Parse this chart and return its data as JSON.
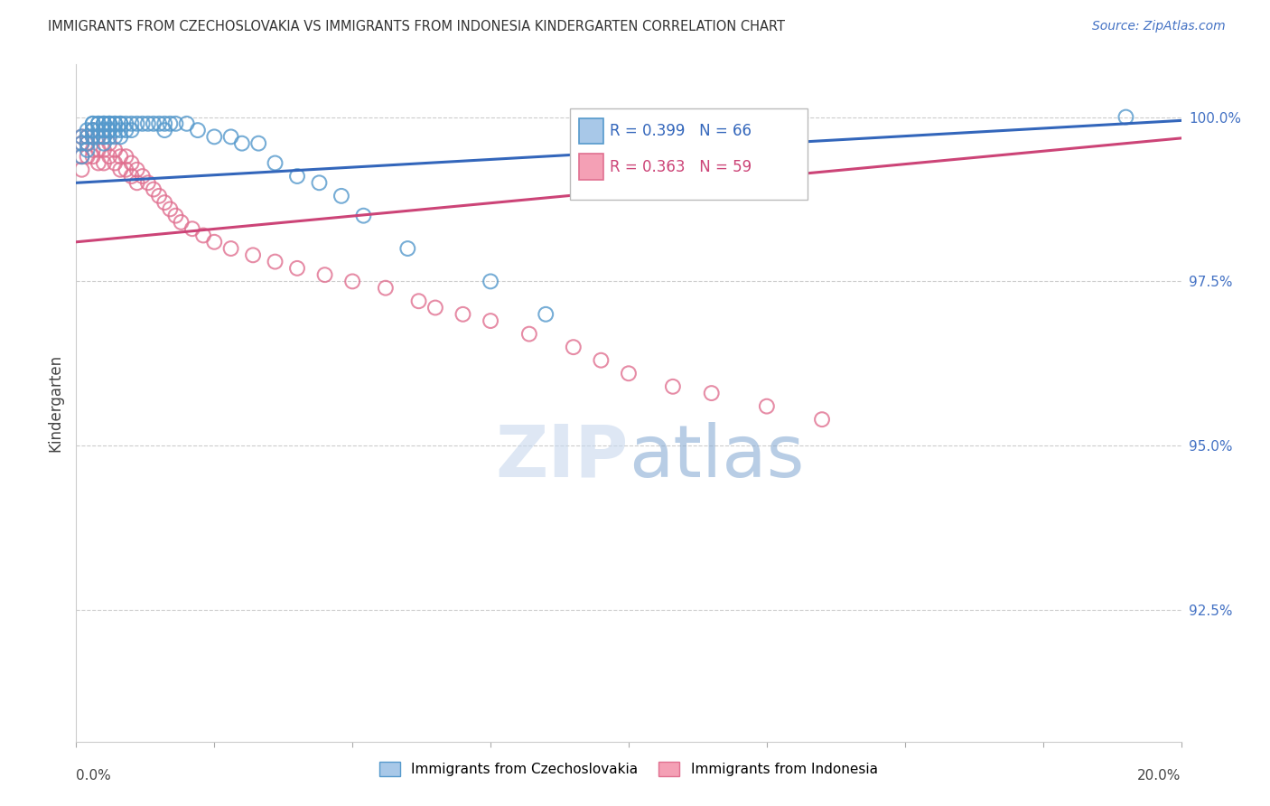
{
  "title": "IMMIGRANTS FROM CZECHOSLOVAKIA VS IMMIGRANTS FROM INDONESIA KINDERGARTEN CORRELATION CHART",
  "source": "Source: ZipAtlas.com",
  "ylabel": "Kindergarten",
  "ytick_labels": [
    "100.0%",
    "97.5%",
    "95.0%",
    "92.5%"
  ],
  "ytick_values": [
    1.0,
    0.975,
    0.95,
    0.925
  ],
  "xmin": 0.0,
  "xmax": 0.2,
  "ymin": 0.905,
  "ymax": 1.008,
  "legend1_label": "Immigrants from Czechoslovakia",
  "legend2_label": "Immigrants from Indonesia",
  "R_blue": 0.399,
  "N_blue": 66,
  "R_pink": 0.363,
  "N_pink": 59,
  "blue_color": "#a8c8e8",
  "pink_color": "#f4a0b5",
  "blue_edge_color": "#5599cc",
  "pink_edge_color": "#e07090",
  "blue_line_color": "#3366bb",
  "pink_line_color": "#cc4477",
  "watermark_zip": "ZIP",
  "watermark_atlas": "atlas",
  "blue_scatter_x": [
    0.001,
    0.001,
    0.001,
    0.002,
    0.002,
    0.002,
    0.002,
    0.003,
    0.003,
    0.003,
    0.003,
    0.003,
    0.004,
    0.004,
    0.004,
    0.004,
    0.005,
    0.005,
    0.005,
    0.005,
    0.005,
    0.005,
    0.005,
    0.005,
    0.006,
    0.006,
    0.006,
    0.006,
    0.006,
    0.006,
    0.007,
    0.007,
    0.007,
    0.007,
    0.008,
    0.008,
    0.008,
    0.008,
    0.009,
    0.009,
    0.01,
    0.01,
    0.011,
    0.012,
    0.013,
    0.014,
    0.015,
    0.016,
    0.016,
    0.017,
    0.018,
    0.02,
    0.022,
    0.025,
    0.028,
    0.03,
    0.033,
    0.036,
    0.04,
    0.044,
    0.048,
    0.052,
    0.06,
    0.075,
    0.085,
    0.19
  ],
  "blue_scatter_y": [
    0.997,
    0.996,
    0.994,
    0.998,
    0.997,
    0.996,
    0.995,
    0.999,
    0.999,
    0.998,
    0.998,
    0.997,
    0.999,
    0.999,
    0.998,
    0.997,
    0.999,
    0.999,
    0.999,
    0.998,
    0.998,
    0.997,
    0.997,
    0.996,
    0.999,
    0.999,
    0.999,
    0.998,
    0.998,
    0.997,
    0.999,
    0.999,
    0.998,
    0.997,
    0.999,
    0.999,
    0.998,
    0.997,
    0.999,
    0.998,
    0.999,
    0.998,
    0.999,
    0.999,
    0.999,
    0.999,
    0.999,
    0.999,
    0.998,
    0.999,
    0.999,
    0.999,
    0.998,
    0.997,
    0.997,
    0.996,
    0.996,
    0.993,
    0.991,
    0.99,
    0.988,
    0.985,
    0.98,
    0.975,
    0.97,
    1.0
  ],
  "pink_scatter_x": [
    0.001,
    0.001,
    0.001,
    0.001,
    0.002,
    0.002,
    0.002,
    0.003,
    0.003,
    0.003,
    0.003,
    0.004,
    0.004,
    0.004,
    0.005,
    0.005,
    0.005,
    0.006,
    0.006,
    0.007,
    0.007,
    0.008,
    0.008,
    0.009,
    0.009,
    0.01,
    0.01,
    0.011,
    0.011,
    0.012,
    0.013,
    0.014,
    0.015,
    0.016,
    0.017,
    0.018,
    0.019,
    0.021,
    0.023,
    0.025,
    0.028,
    0.032,
    0.036,
    0.04,
    0.045,
    0.05,
    0.056,
    0.062,
    0.065,
    0.07,
    0.075,
    0.082,
    0.09,
    0.095,
    0.1,
    0.108,
    0.115,
    0.125,
    0.135
  ],
  "pink_scatter_y": [
    0.997,
    0.996,
    0.994,
    0.992,
    0.997,
    0.996,
    0.994,
    0.998,
    0.997,
    0.995,
    0.994,
    0.997,
    0.995,
    0.993,
    0.997,
    0.995,
    0.993,
    0.996,
    0.994,
    0.995,
    0.993,
    0.994,
    0.992,
    0.994,
    0.992,
    0.993,
    0.991,
    0.992,
    0.99,
    0.991,
    0.99,
    0.989,
    0.988,
    0.987,
    0.986,
    0.985,
    0.984,
    0.983,
    0.982,
    0.981,
    0.98,
    0.979,
    0.978,
    0.977,
    0.976,
    0.975,
    0.974,
    0.972,
    0.971,
    0.97,
    0.969,
    0.967,
    0.965,
    0.963,
    0.961,
    0.959,
    0.958,
    0.956,
    0.954
  ]
}
